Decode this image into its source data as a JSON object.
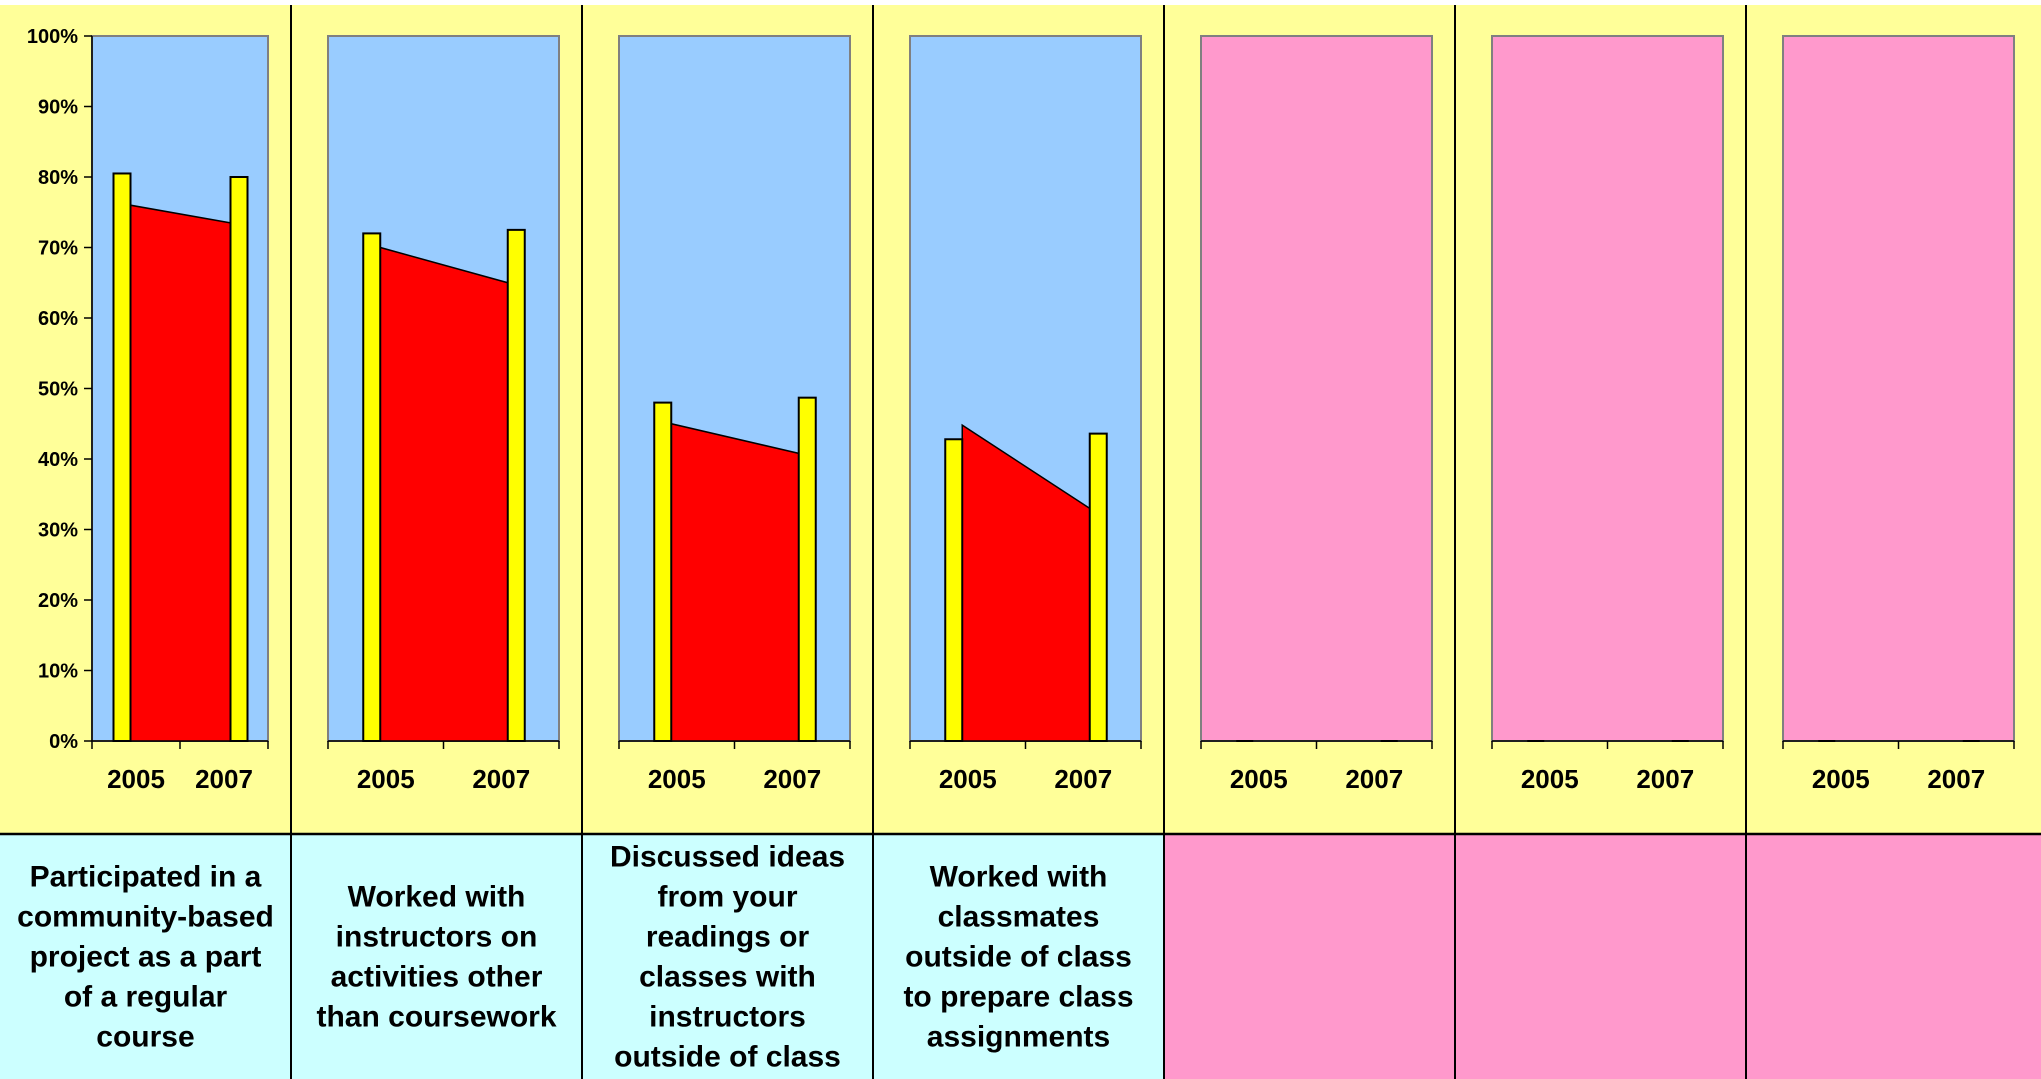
{
  "chart_data": {
    "type": "bar",
    "categories": [
      "2005",
      "2007"
    ],
    "y_ticks": [
      "0%",
      "10%",
      "20%",
      "30%",
      "40%",
      "50%",
      "60%",
      "70%",
      "80%",
      "90%",
      "100%"
    ],
    "ylim": [
      0,
      100
    ],
    "grid": false,
    "panels": [
      {
        "description": [
          "Participated in a",
          "community-based",
          "project as a part",
          "of a regular",
          "course"
        ],
        "bar_values": [
          80.5,
          80
        ],
        "area_values": [
          76,
          73.5
        ],
        "plot_color": "#99ccff",
        "label_color": "#ccffff"
      },
      {
        "description": [
          "Worked with",
          "instructors on",
          "activities other",
          "than coursework"
        ],
        "bar_values": [
          72,
          72.5
        ],
        "area_values": [
          70,
          65
        ],
        "plot_color": "#99ccff",
        "label_color": "#ccffff"
      },
      {
        "description": [
          "Discussed ideas",
          "from your",
          "readings or",
          "classes with",
          "instructors",
          "outside of class"
        ],
        "bar_values": [
          48,
          48.7
        ],
        "area_values": [
          45,
          40.8
        ],
        "plot_color": "#99ccff",
        "label_color": "#ccffff"
      },
      {
        "description": [
          "Worked with",
          "classmates",
          "outside of class",
          "to prepare class",
          "assignments"
        ],
        "bar_values": [
          42.8,
          43.6
        ],
        "area_values": [
          44.8,
          33
        ],
        "plot_color": "#99ccff",
        "label_color": "#ccffff"
      },
      {
        "description": [],
        "bar_values": [
          0,
          0
        ],
        "area_values": [
          0,
          0
        ],
        "plot_color": "#ff99cc",
        "label_color": "#ff99cc"
      },
      {
        "description": [],
        "bar_values": [
          0,
          0
        ],
        "area_values": [
          0,
          0
        ],
        "plot_color": "#ff99cc",
        "label_color": "#ff99cc"
      },
      {
        "description": [],
        "bar_values": [
          0,
          0
        ],
        "area_values": [
          0,
          0
        ],
        "plot_color": "#ff99cc",
        "label_color": "#ff99cc"
      }
    ],
    "colors": {
      "panel_background": "#ffff99",
      "bar_fill": "#ffff00",
      "area_fill": "#ff0000",
      "plot_border": "#808080",
      "divider": "#000000"
    }
  }
}
